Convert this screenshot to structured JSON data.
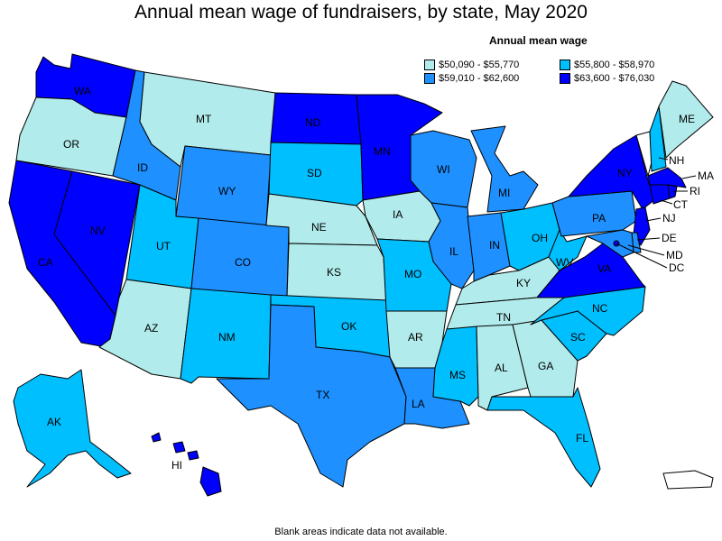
{
  "title": "Annual mean wage of fundraisers, by state, May 2020",
  "legend": {
    "title": "Annual mean wage",
    "items": [
      {
        "label": "$50,090 - $55,770",
        "color": "#b2ebeb"
      },
      {
        "label": "$55,800 - $58,970",
        "color": "#00bfff"
      },
      {
        "label": "$59,010 - $62,600",
        "color": "#1e90ff"
      },
      {
        "label": "$63,600 - $76,030",
        "color": "#0000ff"
      }
    ]
  },
  "footnote": "Blank areas indicate data not available.",
  "states": {
    "WA": 3,
    "OR": 0,
    "CA": 3,
    "NV": 3,
    "ID": 2,
    "MT": 0,
    "WY": 2,
    "UT": 1,
    "AZ": 0,
    "CO": 2,
    "NM": 1,
    "ND": 3,
    "SD": 1,
    "NE": 0,
    "KS": 0,
    "OK": 1,
    "TX": 2,
    "MN": 3,
    "IA": 0,
    "MO": 1,
    "AR": 0,
    "LA": 2,
    "WI": 2,
    "IL": 2,
    "MI": 2,
    "IN": 2,
    "OH": 1,
    "KY": 0,
    "TN": 0,
    "MS": 1,
    "AL": 0,
    "GA": 0,
    "FL": 1,
    "SC": 1,
    "NC": 1,
    "VA": 3,
    "WV": 1,
    "PA": 2,
    "NY": 3,
    "VT": null,
    "NH": 1,
    "ME": 0,
    "MA": 3,
    "RI": 3,
    "CT": 3,
    "NJ": 3,
    "DE": 2,
    "MD": 2,
    "DC": 3,
    "AK": 1,
    "HI": 3,
    "PR": null
  },
  "labels": [
    "WA",
    "OR",
    "CA",
    "NV",
    "ID",
    "MT",
    "WY",
    "UT",
    "AZ",
    "CO",
    "NM",
    "ND",
    "SD",
    "NE",
    "KS",
    "OK",
    "TX",
    "MN",
    "IA",
    "MO",
    "AR",
    "LA",
    "WI",
    "IL",
    "MI",
    "IN",
    "OH",
    "KY",
    "TN",
    "MS",
    "AL",
    "GA",
    "FL",
    "SC",
    "NC",
    "VA",
    "WV",
    "PA",
    "NY",
    "NH",
    "ME",
    "MA",
    "RI",
    "CT",
    "NJ",
    "DE",
    "MD",
    "DC",
    "AK",
    "HI"
  ]
}
